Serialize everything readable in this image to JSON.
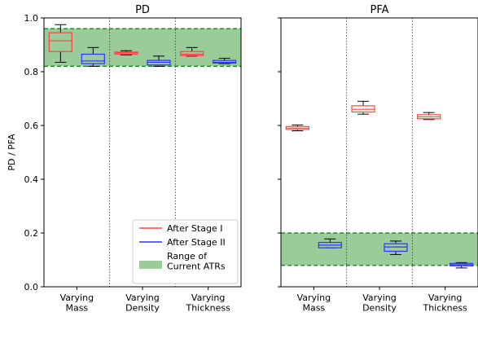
{
  "chart_data": [
    {
      "type": "box",
      "title": "PD",
      "ylabel": "PD / PFA",
      "ylim": [
        0.0,
        1.0
      ],
      "yticks": [
        "0.0",
        "0.2",
        "0.4",
        "0.6",
        "0.8",
        "1.0"
      ],
      "categories": [
        "Varying\nMass",
        "Varying\nDensity",
        "Varying\nThickness"
      ],
      "band": {
        "low": 0.82,
        "high": 0.96,
        "color": "#99cc99",
        "edge_color": "#228b22"
      },
      "series": [
        {
          "name": "After Stage I",
          "color": "#ff4444",
          "boxes": [
            {
              "whisker_low": 0.835,
              "q1": 0.875,
              "median": 0.915,
              "q3": 0.945,
              "whisker_high": 0.975
            },
            {
              "whisker_low": 0.862,
              "q1": 0.865,
              "median": 0.87,
              "q3": 0.873,
              "whisker_high": 0.878
            },
            {
              "whisker_low": 0.858,
              "q1": 0.86,
              "median": 0.865,
              "q3": 0.875,
              "whisker_high": 0.89
            }
          ]
        },
        {
          "name": "After Stage II",
          "color": "#3333ff",
          "boxes": [
            {
              "whisker_low": 0.82,
              "q1": 0.83,
              "median": 0.84,
              "q3": 0.865,
              "whisker_high": 0.89
            },
            {
              "whisker_low": 0.82,
              "q1": 0.825,
              "median": 0.835,
              "q3": 0.842,
              "whisker_high": 0.858
            },
            {
              "whisker_low": 0.83,
              "q1": 0.832,
              "median": 0.835,
              "q3": 0.842,
              "whisker_high": 0.85
            }
          ]
        }
      ],
      "legend": {
        "placement": "lower-right",
        "entries": [
          {
            "label": "After Stage I",
            "color": "#ff4444",
            "kind": "line"
          },
          {
            "label": "After Stage II",
            "color": "#3333ff",
            "kind": "line"
          },
          {
            "label": "Range of\nCurrent ATRs",
            "color": "#99cc99",
            "kind": "patch"
          }
        ]
      }
    },
    {
      "type": "box",
      "title": "PFA",
      "ylim": [
        0.0,
        1.0
      ],
      "categories": [
        "Varying\nMass",
        "Varying\nDensity",
        "Varying\nThickness"
      ],
      "band": {
        "low": 0.08,
        "high": 0.2,
        "color": "#99cc99",
        "edge_color": "#228b22"
      },
      "series": [
        {
          "name": "After Stage I",
          "color": "#ff4444",
          "boxes": [
            {
              "whisker_low": 0.58,
              "q1": 0.585,
              "median": 0.59,
              "q3": 0.596,
              "whisker_high": 0.602
            },
            {
              "whisker_low": 0.642,
              "q1": 0.65,
              "median": 0.66,
              "q3": 0.673,
              "whisker_high": 0.69
            },
            {
              "whisker_low": 0.622,
              "q1": 0.625,
              "median": 0.632,
              "q3": 0.64,
              "whisker_high": 0.648
            }
          ]
        },
        {
          "name": "After Stage II",
          "color": "#3333ff",
          "boxes": [
            {
              "whisker_low": 0.145,
              "q1": 0.145,
              "median": 0.155,
              "q3": 0.165,
              "whisker_high": 0.178
            },
            {
              "whisker_low": 0.12,
              "q1": 0.132,
              "median": 0.148,
              "q3": 0.16,
              "whisker_high": 0.17
            },
            {
              "whisker_low": 0.07,
              "q1": 0.078,
              "median": 0.082,
              "q3": 0.087,
              "whisker_high": 0.09
            }
          ]
        }
      ]
    }
  ]
}
